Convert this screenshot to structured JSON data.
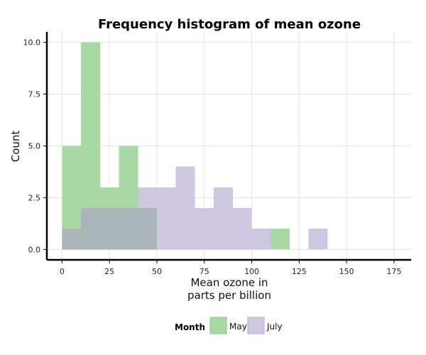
{
  "chart_data": {
    "type": "bar",
    "title": "Frequency histogram of mean ozone",
    "xlabel_lines": [
      "Mean ozone in",
      "parts per billion"
    ],
    "ylabel": "Count",
    "xlim": [
      -8,
      184
    ],
    "ylim": [
      -0.5,
      10.5
    ],
    "x_ticks": [
      0,
      25,
      50,
      75,
      100,
      125,
      150,
      175
    ],
    "x_tick_labels": [
      "0",
      "25",
      "50",
      "75",
      "100",
      "125",
      "150",
      "175"
    ],
    "y_ticks": [
      0,
      2.5,
      5,
      7.5,
      10
    ],
    "y_tick_labels": [
      "0.0",
      "2.5",
      "5.0",
      "7.5",
      "10.0"
    ],
    "bin_width": 10,
    "grid": true,
    "legend": {
      "title": "Month",
      "placement": "bottom"
    },
    "series": [
      {
        "name": "May",
        "color": "#a8d9a5",
        "bin_starts": [
          0,
          10,
          20,
          30,
          40,
          50,
          60,
          70,
          80,
          90,
          100,
          110,
          120,
          130
        ],
        "values": [
          5,
          10,
          3,
          5,
          2,
          0,
          0,
          0,
          0,
          0,
          0,
          1,
          0,
          0
        ]
      },
      {
        "name": "July",
        "color": "#cfc6e1",
        "bin_starts": [
          0,
          10,
          20,
          30,
          40,
          50,
          60,
          70,
          80,
          90,
          100,
          110,
          120,
          130
        ],
        "values": [
          1,
          2,
          2,
          2,
          3,
          3,
          4,
          2,
          3,
          2,
          1,
          0,
          0,
          1
        ]
      }
    ],
    "overlap_color": "#a9b5b9"
  }
}
